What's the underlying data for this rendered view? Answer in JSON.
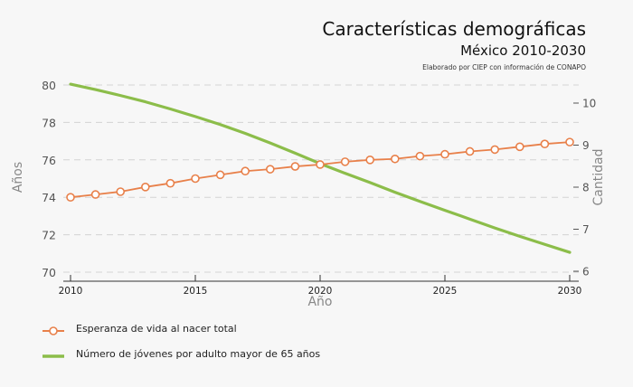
{
  "header": {
    "title": "Características demográficas",
    "subtitle": "México 2010-2030",
    "source": "Elaborado por CIEP con información de CONAPO"
  },
  "chart_data": {
    "type": "line",
    "title": "Características demográficas",
    "subtitle": "México 2010-2030",
    "xlabel": "Año",
    "ylabel": "Años",
    "y2label": "Cantidad",
    "x": [
      2010,
      2011,
      2012,
      2013,
      2014,
      2015,
      2016,
      2017,
      2018,
      2019,
      2020,
      2021,
      2022,
      2023,
      2024,
      2025,
      2026,
      2027,
      2028,
      2029,
      2030
    ],
    "xticks": [
      2010,
      2015,
      2020,
      2025,
      2030
    ],
    "yticks": [
      70,
      72,
      74,
      76,
      78,
      80
    ],
    "y2ticks": [
      6,
      7,
      8,
      9,
      10
    ],
    "ylim": [
      70,
      80
    ],
    "y2lim": [
      5.98,
      10.45
    ],
    "grid": true,
    "legend_position": "bottom-left",
    "series": [
      {
        "name": "Esperanza de vida al nacer total",
        "axis": "left",
        "color": "#e8804a",
        "marker": "circle-open",
        "values": [
          74.0,
          74.15,
          74.3,
          74.55,
          74.75,
          75.0,
          75.2,
          75.4,
          75.5,
          75.65,
          75.75,
          75.9,
          76.0,
          76.05,
          76.2,
          76.3,
          76.45,
          76.55,
          76.7,
          76.85,
          76.95
        ]
      },
      {
        "name": "Número de jóvenes por adulto mayor de 65 años",
        "axis": "right",
        "color": "#8cbd4a",
        "marker": "none",
        "values": [
          10.45,
          10.32,
          10.18,
          10.03,
          9.86,
          9.68,
          9.49,
          9.28,
          9.05,
          8.81,
          8.56,
          8.33,
          8.11,
          7.88,
          7.66,
          7.45,
          7.24,
          7.03,
          6.83,
          6.64,
          6.45
        ]
      }
    ]
  }
}
